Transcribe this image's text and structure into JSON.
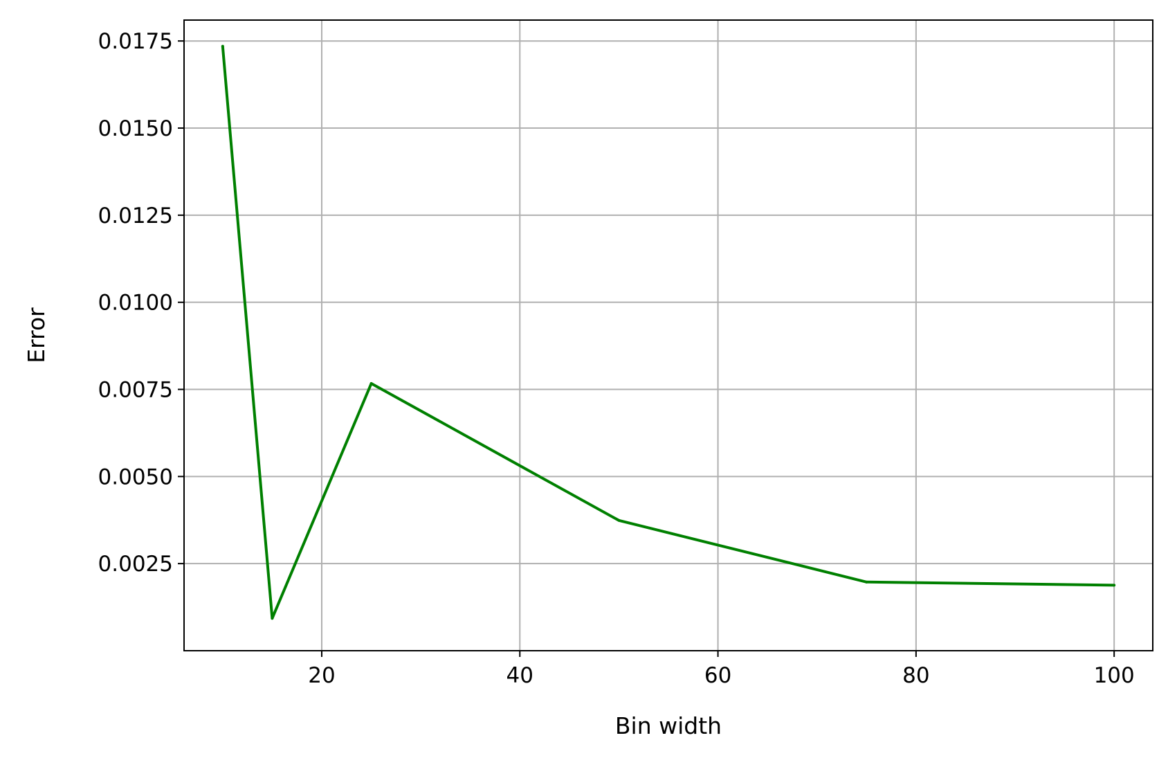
{
  "chart_data": {
    "type": "line",
    "title": "",
    "xlabel": "Bin width",
    "ylabel": "Error",
    "xlim": [
      6.1,
      103.9
    ],
    "ylim": [
      0.0,
      0.0181
    ],
    "xticks": [
      20,
      40,
      60,
      80,
      100
    ],
    "xtick_labels": [
      "20",
      "40",
      "60",
      "80",
      "100"
    ],
    "yticks": [
      0.0025,
      0.005,
      0.0075,
      0.01,
      0.0125,
      0.015,
      0.0175
    ],
    "ytick_labels": [
      "0.0025",
      "0.0050",
      "0.0075",
      "0.0100",
      "0.0125",
      "0.0150",
      "0.0175"
    ],
    "grid": true,
    "legend": "none",
    "series": [
      {
        "color": "#008000",
        "x": [
          10,
          15,
          25,
          50,
          75,
          100
        ],
        "y": [
          0.01735,
          0.00093,
          0.00767,
          0.00374,
          0.00197,
          0.00188
        ]
      }
    ]
  }
}
